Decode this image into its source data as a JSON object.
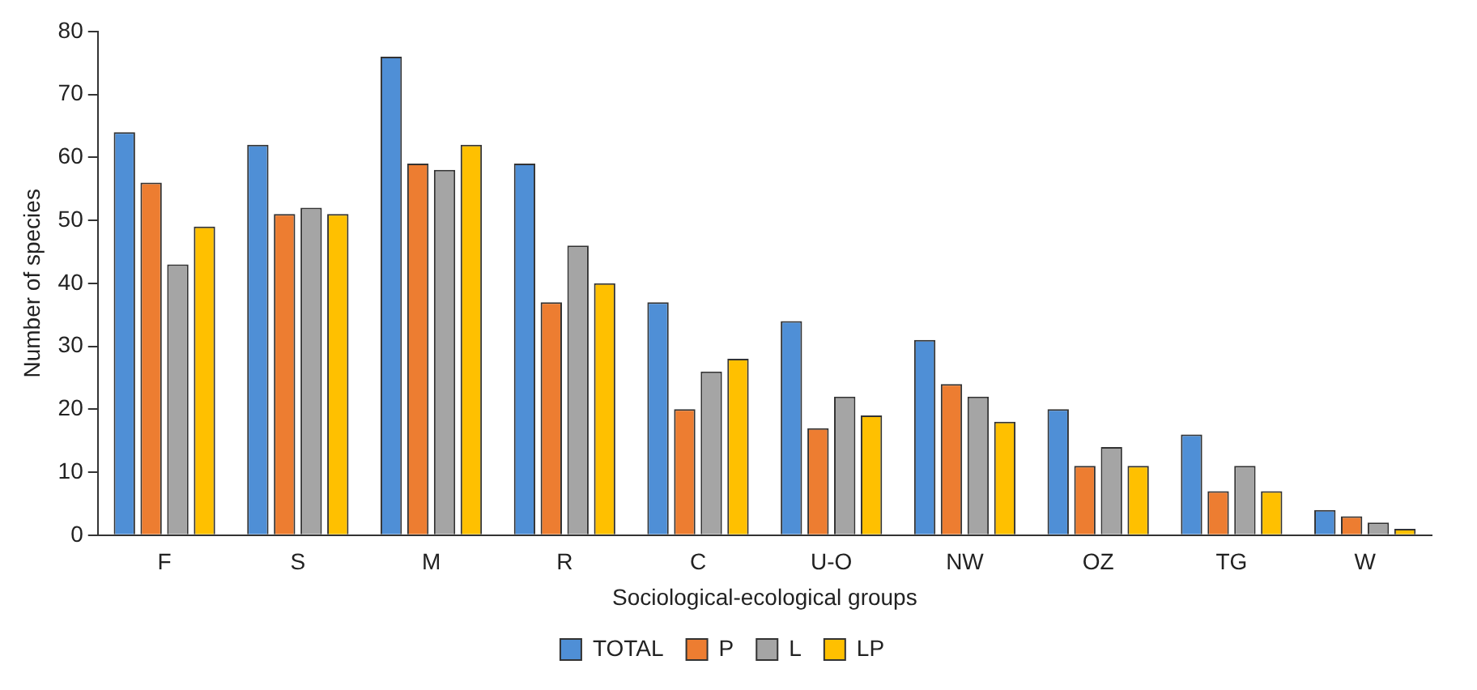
{
  "chart_data": {
    "type": "bar",
    "xlabel": "Sociological-ecological groups",
    "ylabel": "Number of species",
    "categories": [
      "F",
      "S",
      "M",
      "R",
      "C",
      "U-O",
      "NW",
      "OZ",
      "TG",
      "W"
    ],
    "series": [
      {
        "name": "TOTAL",
        "color": "#4f8fd6",
        "values": [
          64,
          62,
          76,
          59,
          37,
          34,
          31,
          20,
          16,
          4
        ]
      },
      {
        "name": "P",
        "color": "#ed7d31",
        "values": [
          56,
          51,
          59,
          37,
          20,
          17,
          24,
          11,
          7,
          3
        ]
      },
      {
        "name": "L",
        "color": "#a5a5a5",
        "values": [
          43,
          52,
          58,
          46,
          26,
          22,
          22,
          14,
          11,
          2
        ]
      },
      {
        "name": "LP",
        "color": "#ffc000",
        "values": [
          49,
          51,
          62,
          40,
          28,
          19,
          18,
          11,
          7,
          1
        ]
      }
    ],
    "ylim": [
      0,
      80
    ],
    "yticks": [
      0,
      10,
      20,
      30,
      40,
      50,
      60,
      70,
      80
    ],
    "grid": false,
    "legend": "bottom"
  }
}
